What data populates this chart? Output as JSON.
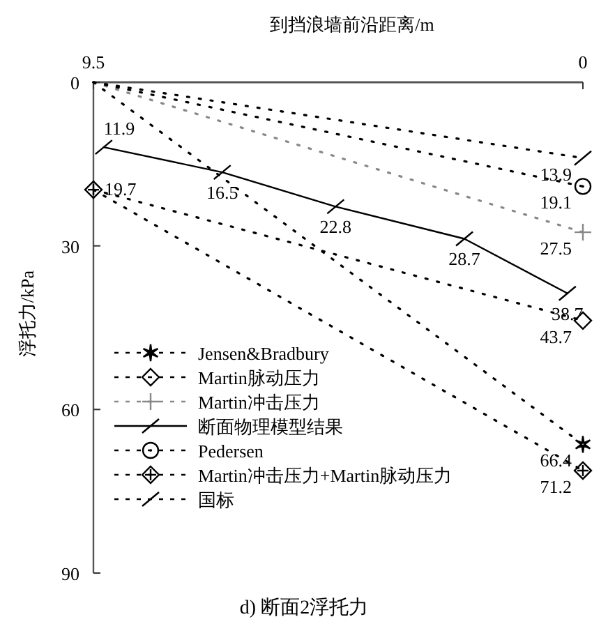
{
  "chart_data": {
    "type": "line",
    "title": "d) 断面2浮托力",
    "xlabel": "到挡浪墙前沿距离/m",
    "ylabel": "浮托力/kPa",
    "xlim": [
      9.5,
      0
    ],
    "xticks": [
      9.5,
      0
    ],
    "ylim": [
      90,
      0
    ],
    "yticks": [
      0,
      30,
      60,
      90
    ],
    "legend": "bottom left",
    "grid": false,
    "series": [
      {
        "name": "Jensen&Bradbury",
        "color": "#000000",
        "line_style": "dotted",
        "marker": "cross",
        "x": [
          9.5,
          0
        ],
        "values": [
          0,
          66.4
        ],
        "value_labels": [
          null,
          "66.4"
        ]
      },
      {
        "name": "Martin脉动压力",
        "color": "#000000",
        "line_style": "dotted",
        "marker": "diamond",
        "x": [
          9.5,
          0
        ],
        "values": [
          19.7,
          43.7
        ],
        "value_labels": [
          null,
          "43.7"
        ]
      },
      {
        "name": "Martin冲击压力",
        "color": "#888888",
        "line_style": "dotted",
        "marker": "cross",
        "x": [
          9.5,
          0
        ],
        "values": [
          0,
          27.5
        ],
        "value_labels": [
          null,
          "27.5"
        ]
      },
      {
        "name": "断面物理模型结果",
        "color": "#000000",
        "line_style": "solid",
        "marker": "cross",
        "x": [
          9.3,
          7,
          4.8,
          2.3,
          0.3
        ],
        "values": [
          11.9,
          16.5,
          22.8,
          28.7,
          38.7
        ],
        "value_labels": [
          "11.9",
          "16.5",
          "22.8",
          "28.7",
          "38.7"
        ]
      },
      {
        "name": "Pedersen",
        "color": "#000000",
        "line_style": "dotted",
        "marker": "circle",
        "x": [
          9.5,
          0
        ],
        "values": [
          0,
          19.1
        ],
        "value_labels": [
          null,
          "19.1"
        ]
      },
      {
        "name": "Martin冲击压力+Martin脉动压力",
        "color": "#000000",
        "line_style": "dotted",
        "marker": "cross",
        "x": [
          9.5,
          0
        ],
        "values": [
          19.7,
          71.2
        ],
        "value_labels": [
          "19.7",
          "71.2"
        ]
      },
      {
        "name": "国标",
        "color": "#000000",
        "line_style": "dotted",
        "marker": "cross",
        "x": [
          9.5,
          0
        ],
        "values": [
          0,
          13.9
        ],
        "value_labels": [
          null,
          "13.9"
        ]
      }
    ]
  }
}
